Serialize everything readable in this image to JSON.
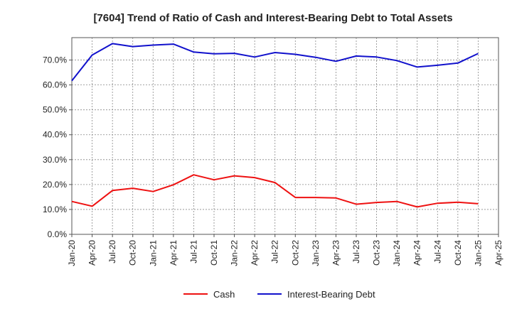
{
  "chart_data": {
    "type": "line",
    "title": "[7604]  Trend of Ratio of Cash and Interest-Bearing Debt to Total Assets",
    "xlabel": "",
    "ylabel": "",
    "x": [
      "Jan-20",
      "Apr-20",
      "Jul-20",
      "Oct-20",
      "Jan-21",
      "Apr-21",
      "Jul-21",
      "Oct-21",
      "Jan-22",
      "Apr-22",
      "Jul-22",
      "Oct-22",
      "Jan-23",
      "Apr-23",
      "Jul-23",
      "Oct-23",
      "Jan-24",
      "Apr-24",
      "Jul-24",
      "Oct-24",
      "Jan-25"
    ],
    "x_ticks": [
      "Jan-20",
      "Apr-20",
      "Jul-20",
      "Oct-20",
      "Jan-21",
      "Apr-21",
      "Jul-21",
      "Oct-21",
      "Jan-22",
      "Apr-22",
      "Jul-22",
      "Oct-22",
      "Jan-23",
      "Apr-23",
      "Jul-23",
      "Oct-23",
      "Jan-24",
      "Apr-24",
      "Jul-24",
      "Oct-24",
      "Jan-25",
      "Apr-25"
    ],
    "y_ticks": [
      0,
      10,
      20,
      30,
      40,
      50,
      60,
      70
    ],
    "y_tick_labels": [
      "0.0%",
      "10.0%",
      "20.0%",
      "30.0%",
      "40.0%",
      "50.0%",
      "60.0%",
      "70.0%"
    ],
    "ylim": [
      0,
      79
    ],
    "grid": true,
    "legend_position": "bottom",
    "series": [
      {
        "name": "Cash",
        "color": "#ee1111",
        "values": [
          13.2,
          11.3,
          17.6,
          18.5,
          17.2,
          19.9,
          23.9,
          21.9,
          23.5,
          22.8,
          20.8,
          14.8,
          14.8,
          14.6,
          12.1,
          12.8,
          13.2,
          11.0,
          12.5,
          12.9,
          12.3
        ]
      },
      {
        "name": "Interest-Bearing Debt",
        "color": "#1111cc",
        "values": [
          61.7,
          72.0,
          76.6,
          75.4,
          76.0,
          76.4,
          73.2,
          72.5,
          72.7,
          71.2,
          73.0,
          72.3,
          71.1,
          69.5,
          71.6,
          71.2,
          69.8,
          67.2,
          67.9,
          68.8,
          72.6
        ]
      }
    ]
  }
}
